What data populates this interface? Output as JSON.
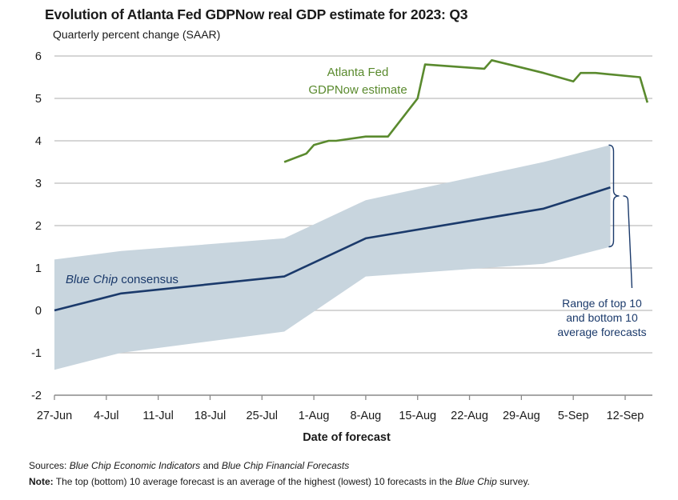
{
  "title": "Evolution of Atlanta Fed GDPNow real GDP estimate for 2023: Q3",
  "subtitle": "Quarterly percent change (SAAR)",
  "footer": {
    "sources_label": "Sources:",
    "sources_part1": "Blue Chip Economic Indicators",
    "sources_part2": " and ",
    "sources_part3": "Blue Chip Financial Forecasts",
    "note_label": "Note:",
    "note_part1": " The top (bottom) 10 average forecast is an average of the highest (lowest) 10 forecasts in the ",
    "note_part2": "Blue Chip",
    "note_part3": " survey."
  },
  "colors": {
    "gdpnow": "#5a8a2e",
    "consensus": "#1b3a6b",
    "band": "#c8d5de",
    "grid": "#c8c8c8"
  },
  "chart_data": {
    "type": "line",
    "xlabel": "Date of forecast",
    "ylabel": "",
    "ylim": [
      -2,
      6
    ],
    "yticks": [
      "6",
      "5",
      "4",
      "3",
      "2",
      "1",
      "0",
      "-1",
      "-2"
    ],
    "x_ticks": [
      "27-Jun",
      "4-Jul",
      "11-Jul",
      "18-Jul",
      "25-Jul",
      "1-Aug",
      "8-Aug",
      "15-Aug",
      "22-Aug",
      "29-Aug",
      "5-Sep",
      "12-Sep"
    ],
    "x_tick_dates": [
      "2023-06-27",
      "2023-07-04",
      "2023-07-11",
      "2023-07-18",
      "2023-07-25",
      "2023-08-01",
      "2023-08-08",
      "2023-08-15",
      "2023-08-22",
      "2023-08-29",
      "2023-09-05",
      "2023-09-12"
    ],
    "grid": true,
    "series": [
      {
        "name": "Atlanta Fed GDPNow estimate",
        "label_lines": [
          "Atlanta Fed",
          "GDPNow estimate"
        ],
        "points": [
          [
            "2023-07-28",
            3.5
          ],
          [
            "2023-07-31",
            3.7
          ],
          [
            "2023-08-01",
            3.9
          ],
          [
            "2023-08-03",
            4.0
          ],
          [
            "2023-08-04",
            4.0
          ],
          [
            "2023-08-08",
            4.1
          ],
          [
            "2023-08-11",
            4.1
          ],
          [
            "2023-08-15",
            5.0
          ],
          [
            "2023-08-16",
            5.8
          ],
          [
            "2023-08-24",
            5.7
          ],
          [
            "2023-08-25",
            5.9
          ],
          [
            "2023-09-01",
            5.6
          ],
          [
            "2023-09-05",
            5.4
          ],
          [
            "2023-09-06",
            5.6
          ],
          [
            "2023-09-08",
            5.6
          ],
          [
            "2023-09-14",
            5.5
          ],
          [
            "2023-09-15",
            4.9
          ]
        ]
      },
      {
        "name": "Blue Chip consensus",
        "label_italic": "Blue Chip",
        "label_rest": " consensus",
        "points": [
          [
            "2023-06-27",
            0.0
          ],
          [
            "2023-07-06",
            0.4
          ],
          [
            "2023-07-28",
            0.8
          ],
          [
            "2023-08-08",
            1.7
          ],
          [
            "2023-09-01",
            2.4
          ],
          [
            "2023-09-10",
            2.9
          ]
        ]
      },
      {
        "name": "Range of top 10 and bottom 10 average forecasts",
        "label_lines": [
          "Range of top 10",
          "and bottom 10",
          "average forecasts"
        ],
        "upper": [
          [
            "2023-06-27",
            1.2
          ],
          [
            "2023-07-06",
            1.4
          ],
          [
            "2023-07-28",
            1.7
          ],
          [
            "2023-08-08",
            2.6
          ],
          [
            "2023-09-01",
            3.5
          ],
          [
            "2023-09-10",
            3.9
          ]
        ],
        "lower": [
          [
            "2023-06-27",
            -1.4
          ],
          [
            "2023-07-06",
            -1.0
          ],
          [
            "2023-07-28",
            -0.5
          ],
          [
            "2023-08-08",
            0.8
          ],
          [
            "2023-09-01",
            1.1
          ],
          [
            "2023-09-10",
            1.5
          ]
        ]
      }
    ]
  }
}
